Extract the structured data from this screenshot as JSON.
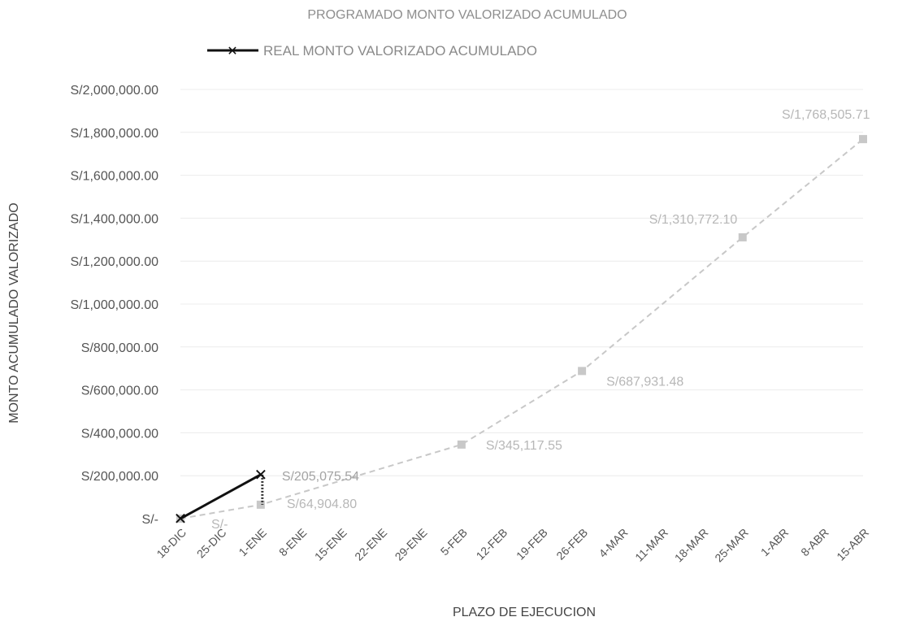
{
  "chart_data": {
    "type": "line",
    "title": "PROGRAMADO MONTO VALORIZADO ACUMULADO",
    "xlabel": "PLAZO DE EJECUCION",
    "ylabel": "MONTO ACUMULADO VALORIZADO",
    "categories": [
      "18-DIC",
      "25-DIC",
      "1-ENE",
      "8-ENE",
      "15-ENE",
      "22-ENE",
      "29-ENE",
      "5-FEB",
      "12-FEB",
      "19-FEB",
      "26-FEB",
      "4-MAR",
      "11-MAR",
      "18-MAR",
      "25-MAR",
      "1-ABR",
      "8-ABR",
      "15-ABR"
    ],
    "y_ticks": [
      {
        "value": 2000000,
        "label": "S/2,000,000.00"
      },
      {
        "value": 1800000,
        "label": "S/1,800,000.00"
      },
      {
        "value": 1600000,
        "label": "S/1,600,000.00"
      },
      {
        "value": 1400000,
        "label": "S/1,400,000.00"
      },
      {
        "value": 1200000,
        "label": "S/1,200,000.00"
      },
      {
        "value": 1000000,
        "label": "S/1,000,000.00"
      },
      {
        "value": 800000,
        "label": "S/800,000.00"
      },
      {
        "value": 600000,
        "label": "S/600,000.00"
      },
      {
        "value": 400000,
        "label": "S/400,000.00"
      },
      {
        "value": 200000,
        "label": "S/200,000.00"
      },
      {
        "value": 0,
        "label": "S/-"
      }
    ],
    "ylim": [
      0,
      2000000
    ],
    "grid": true,
    "legend_position": "top-left",
    "series": [
      {
        "name": "PROGRAMADO MONTO VALORIZADO ACUMULADO",
        "color": "#c8c8c8",
        "points": [
          {
            "x": "18-DIC",
            "y": 0,
            "label": "S/-"
          },
          {
            "x": "1-ENE",
            "y": 64904.8,
            "label": "S/64,904.80"
          },
          {
            "x": "5-FEB",
            "y": 345117.55,
            "label": "S/345,117.55"
          },
          {
            "x": "26-FEB",
            "y": 687931.48,
            "label": "S/687,931.48"
          },
          {
            "x": "25-MAR",
            "y": 1310772.1,
            "label": "S/1,310,772.10"
          },
          {
            "x": "15-ABR",
            "y": 1768505.71,
            "label": "S/1,768,505.71"
          }
        ]
      },
      {
        "name": "REAL MONTO VALORIZADO ACUMULADO",
        "color": "#111111",
        "marker": "x",
        "points": [
          {
            "x": "18-DIC",
            "y": 0,
            "label": "S/-"
          },
          {
            "x": "1-ENE",
            "y": 205075.54,
            "label": "S/205,075.54"
          }
        ]
      }
    ]
  }
}
